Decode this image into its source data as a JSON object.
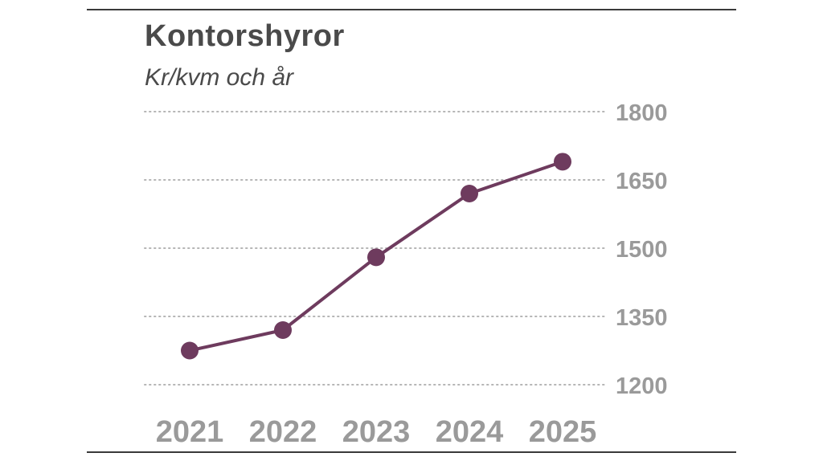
{
  "chart_data": {
    "type": "line",
    "title": "Kontorshyror",
    "subtitle": "Kr/kvm och år",
    "xlabel": "",
    "ylabel": "",
    "categories": [
      "2021",
      "2022",
      "2023",
      "2024",
      "2025"
    ],
    "series": [
      {
        "values": [
          1275,
          1320,
          1480,
          1620,
          1690
        ]
      }
    ],
    "yticks": [
      1200,
      1350,
      1500,
      1650,
      1800
    ],
    "ylim": [
      1200,
      1800
    ],
    "grid": true,
    "grid_style": "dotted",
    "y_axis_side": "right",
    "legend": "none",
    "line_color": "#6e3b5e",
    "text_color": "#4a4a4a",
    "tick_color": "#9a9a9a"
  }
}
